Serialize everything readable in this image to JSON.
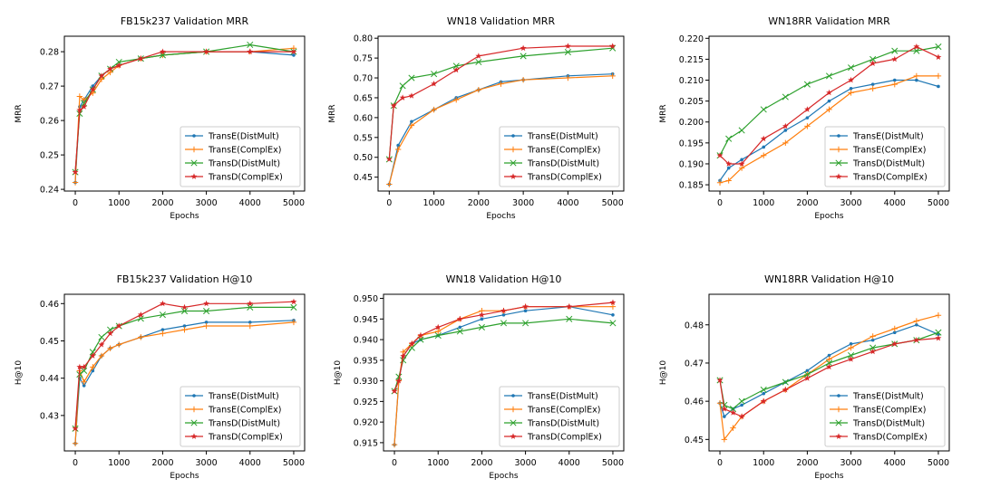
{
  "figure": {
    "colors": {
      "TransE(DistMult)": "#1f77b4",
      "TransE(ComplEx)": "#ff7f0e",
      "TransD(DistMult)": "#2ca02c",
      "TransD(ComplEx)": "#d62728"
    },
    "markers": {
      "TransE(DistMult)": "dot",
      "TransE(ComplEx)": "plus",
      "TransD(DistMult)": "x",
      "TransD(ComplEx)": "star"
    }
  },
  "chart_data": [
    {
      "type": "line",
      "title": "FB15k237 Validation MRR",
      "xlabel": "Epochs",
      "ylabel": "MRR",
      "xlim": [
        -250,
        5250
      ],
      "ylim": [
        0.2395,
        0.2845
      ],
      "xticks": [
        0,
        1000,
        2000,
        3000,
        4000,
        5000
      ],
      "yticks": [
        0.24,
        0.25,
        0.26,
        0.27,
        0.28
      ],
      "ytick_labels": [
        "0.24",
        "0.25",
        "0.26",
        "0.27",
        "0.28"
      ],
      "legend": "lower-right",
      "series": [
        {
          "name": "TransE(DistMult)",
          "x": [
            0,
            100,
            200,
            400,
            600,
            800,
            1000,
            1500,
            2000,
            3000,
            4000,
            5000
          ],
          "y": [
            0.242,
            0.264,
            0.266,
            0.27,
            0.273,
            0.275,
            0.276,
            0.278,
            0.279,
            0.28,
            0.28,
            0.279
          ]
        },
        {
          "name": "TransE(ComplEx)",
          "x": [
            0,
            100,
            200,
            400,
            600,
            800,
            1000,
            1500,
            2000,
            3000,
            4000,
            5000
          ],
          "y": [
            0.242,
            0.267,
            0.266,
            0.268,
            0.272,
            0.274,
            0.276,
            0.278,
            0.279,
            0.28,
            0.28,
            0.281
          ]
        },
        {
          "name": "TransD(DistMult)",
          "x": [
            0,
            100,
            200,
            400,
            600,
            800,
            1000,
            1500,
            2000,
            3000,
            4000,
            5000
          ],
          "y": [
            0.245,
            0.262,
            0.265,
            0.269,
            0.273,
            0.275,
            0.277,
            0.278,
            0.279,
            0.28,
            0.282,
            0.28
          ]
        },
        {
          "name": "TransD(ComplEx)",
          "x": [
            0,
            100,
            200,
            400,
            600,
            800,
            1000,
            1500,
            2000,
            3000,
            4000,
            5000
          ],
          "y": [
            0.245,
            0.263,
            0.264,
            0.269,
            0.273,
            0.275,
            0.276,
            0.278,
            0.28,
            0.28,
            0.28,
            0.28
          ]
        }
      ]
    },
    {
      "type": "line",
      "title": "WN18 Validation MRR",
      "xlabel": "Epochs",
      "ylabel": "MRR",
      "xlim": [
        -250,
        5250
      ],
      "ylim": [
        0.415,
        0.805
      ],
      "xticks": [
        0,
        1000,
        2000,
        3000,
        4000,
        5000
      ],
      "yticks": [
        0.45,
        0.5,
        0.55,
        0.6,
        0.65,
        0.7,
        0.75,
        0.8
      ],
      "ytick_labels": [
        "0.45",
        "0.50",
        "0.55",
        "0.60",
        "0.65",
        "0.70",
        "0.75",
        "0.80"
      ],
      "legend": "lower-right",
      "series": [
        {
          "name": "TransE(DistMult)",
          "x": [
            0,
            200,
            500,
            1000,
            1500,
            2000,
            2500,
            3000,
            4000,
            5000
          ],
          "y": [
            0.432,
            0.53,
            0.59,
            0.62,
            0.65,
            0.67,
            0.69,
            0.695,
            0.705,
            0.71
          ]
        },
        {
          "name": "TransE(ComplEx)",
          "x": [
            0,
            200,
            500,
            1000,
            1500,
            2000,
            2500,
            3000,
            4000,
            5000
          ],
          "y": [
            0.432,
            0.52,
            0.58,
            0.62,
            0.645,
            0.67,
            0.685,
            0.695,
            0.7,
            0.705
          ]
        },
        {
          "name": "TransD(DistMult)",
          "x": [
            0,
            100,
            300,
            500,
            1000,
            1500,
            2000,
            3000,
            4000,
            5000
          ],
          "y": [
            0.495,
            0.63,
            0.68,
            0.7,
            0.71,
            0.73,
            0.74,
            0.755,
            0.765,
            0.775
          ]
        },
        {
          "name": "TransD(ComplEx)",
          "x": [
            0,
            100,
            300,
            500,
            1000,
            1500,
            2000,
            3000,
            4000,
            5000
          ],
          "y": [
            0.495,
            0.63,
            0.65,
            0.655,
            0.685,
            0.72,
            0.755,
            0.775,
            0.78,
            0.78
          ]
        }
      ]
    },
    {
      "type": "line",
      "title": "WN18RR Validation MRR",
      "xlabel": "Epochs",
      "ylabel": "MRR",
      "xlim": [
        -250,
        5250
      ],
      "ylim": [
        0.1835,
        0.2205
      ],
      "xticks": [
        0,
        1000,
        2000,
        3000,
        4000,
        5000
      ],
      "yticks": [
        0.185,
        0.19,
        0.195,
        0.2,
        0.205,
        0.21,
        0.215,
        0.22
      ],
      "ytick_labels": [
        "0.185",
        "0.190",
        "0.195",
        "0.200",
        "0.205",
        "0.210",
        "0.215",
        "0.220"
      ],
      "legend": "lower-right",
      "series": [
        {
          "name": "TransE(DistMult)",
          "x": [
            0,
            200,
            500,
            1000,
            1500,
            2000,
            2500,
            3000,
            3500,
            4000,
            4500,
            5000
          ],
          "y": [
            0.186,
            0.189,
            0.191,
            0.194,
            0.198,
            0.201,
            0.205,
            0.208,
            0.209,
            0.21,
            0.21,
            0.2085
          ]
        },
        {
          "name": "TransE(ComplEx)",
          "x": [
            0,
            200,
            500,
            1000,
            1500,
            2000,
            2500,
            3000,
            3500,
            4000,
            4500,
            5000
          ],
          "y": [
            0.1855,
            0.186,
            0.189,
            0.192,
            0.195,
            0.199,
            0.203,
            0.207,
            0.208,
            0.209,
            0.211,
            0.211
          ]
        },
        {
          "name": "TransD(DistMult)",
          "x": [
            0,
            200,
            500,
            1000,
            1500,
            2000,
            2500,
            3000,
            3500,
            4000,
            4500,
            5000
          ],
          "y": [
            0.192,
            0.196,
            0.198,
            0.203,
            0.206,
            0.209,
            0.211,
            0.213,
            0.215,
            0.217,
            0.217,
            0.218
          ]
        },
        {
          "name": "TransD(ComplEx)",
          "x": [
            0,
            200,
            500,
            1000,
            1500,
            2000,
            2500,
            3000,
            3500,
            4000,
            4500,
            5000
          ],
          "y": [
            0.192,
            0.19,
            0.19,
            0.196,
            0.199,
            0.203,
            0.207,
            0.21,
            0.214,
            0.215,
            0.218,
            0.2155
          ]
        }
      ]
    },
    {
      "type": "line",
      "title": "FB15k237 Validation H@10",
      "xlabel": "Epochs",
      "ylabel": "H@10",
      "xlim": [
        -250,
        5250
      ],
      "ylim": [
        0.4205,
        0.4625
      ],
      "xticks": [
        0,
        1000,
        2000,
        3000,
        4000,
        5000
      ],
      "yticks": [
        0.43,
        0.44,
        0.45,
        0.46
      ],
      "ytick_labels": [
        "0.43",
        "0.44",
        "0.45",
        "0.46"
      ],
      "legend": "lower-right",
      "series": [
        {
          "name": "TransE(DistMult)",
          "x": [
            0,
            100,
            200,
            400,
            600,
            800,
            1000,
            1500,
            2000,
            2500,
            3000,
            4000,
            5000
          ],
          "y": [
            0.4225,
            0.44,
            0.438,
            0.442,
            0.446,
            0.448,
            0.449,
            0.451,
            0.453,
            0.454,
            0.455,
            0.455,
            0.4555
          ]
        },
        {
          "name": "TransE(ComplEx)",
          "x": [
            0,
            100,
            200,
            400,
            600,
            800,
            1000,
            1500,
            2000,
            2500,
            3000,
            4000,
            5000
          ],
          "y": [
            0.4225,
            0.442,
            0.439,
            0.443,
            0.446,
            0.448,
            0.449,
            0.451,
            0.452,
            0.453,
            0.454,
            0.454,
            0.455
          ]
        },
        {
          "name": "TransD(DistMult)",
          "x": [
            0,
            100,
            200,
            400,
            600,
            800,
            1000,
            1500,
            2000,
            2500,
            3000,
            4000,
            5000
          ],
          "y": [
            0.4265,
            0.441,
            0.442,
            0.447,
            0.451,
            0.453,
            0.454,
            0.456,
            0.457,
            0.458,
            0.458,
            0.459,
            0.459
          ]
        },
        {
          "name": "TransD(ComplEx)",
          "x": [
            0,
            100,
            200,
            400,
            600,
            800,
            1000,
            1500,
            2000,
            2500,
            3000,
            4000,
            5000
          ],
          "y": [
            0.4265,
            0.443,
            0.443,
            0.446,
            0.449,
            0.452,
            0.454,
            0.457,
            0.46,
            0.459,
            0.46,
            0.46,
            0.4605
          ]
        }
      ]
    },
    {
      "type": "line",
      "title": "WN18 Validation H@10",
      "xlabel": "Epochs",
      "ylabel": "H@10",
      "xlim": [
        -250,
        5250
      ],
      "ylim": [
        0.913,
        0.951
      ],
      "xticks": [
        0,
        1000,
        2000,
        3000,
        4000,
        5000
      ],
      "yticks": [
        0.915,
        0.92,
        0.925,
        0.93,
        0.935,
        0.94,
        0.945,
        0.95
      ],
      "ytick_labels": [
        "0.915",
        "0.920",
        "0.925",
        "0.930",
        "0.935",
        "0.940",
        "0.945",
        "0.950"
      ],
      "legend": "lower-right",
      "series": [
        {
          "name": "TransE(DistMult)",
          "x": [
            0,
            100,
            200,
            400,
            600,
            1000,
            1500,
            2000,
            2500,
            3000,
            4000,
            5000
          ],
          "y": [
            0.9145,
            0.93,
            0.936,
            0.939,
            0.94,
            0.941,
            0.943,
            0.945,
            0.946,
            0.947,
            0.948,
            0.946
          ]
        },
        {
          "name": "TransE(ComplEx)",
          "x": [
            0,
            100,
            200,
            400,
            600,
            1000,
            1500,
            2000,
            2500,
            3000,
            4000,
            5000
          ],
          "y": [
            0.9145,
            0.93,
            0.937,
            0.939,
            0.941,
            0.942,
            0.945,
            0.947,
            0.947,
            0.948,
            0.948,
            0.948
          ]
        },
        {
          "name": "TransD(DistMult)",
          "x": [
            0,
            100,
            200,
            400,
            600,
            1000,
            1500,
            2000,
            2500,
            3000,
            4000,
            5000
          ],
          "y": [
            0.9275,
            0.931,
            0.935,
            0.938,
            0.94,
            0.941,
            0.942,
            0.943,
            0.944,
            0.944,
            0.945,
            0.944
          ]
        },
        {
          "name": "TransD(ComplEx)",
          "x": [
            0,
            100,
            200,
            400,
            600,
            1000,
            1500,
            2000,
            2500,
            3000,
            4000,
            5000
          ],
          "y": [
            0.9275,
            0.93,
            0.936,
            0.939,
            0.941,
            0.943,
            0.945,
            0.946,
            0.947,
            0.948,
            0.948,
            0.949
          ]
        }
      ]
    },
    {
      "type": "line",
      "title": "WN18RR Validation H@10",
      "xlabel": "Epochs",
      "ylabel": "H@10",
      "xlim": [
        -250,
        5250
      ],
      "ylim": [
        0.447,
        0.488
      ],
      "xticks": [
        0,
        1000,
        2000,
        3000,
        4000,
        5000
      ],
      "yticks": [
        0.45,
        0.46,
        0.47,
        0.48
      ],
      "ytick_labels": [
        "0.45",
        "0.46",
        "0.47",
        "0.48"
      ],
      "legend": "lower-right",
      "series": [
        {
          "name": "TransE(DistMult)",
          "x": [
            0,
            100,
            300,
            500,
            1000,
            1500,
            2000,
            2500,
            3000,
            3500,
            4000,
            4500,
            5000
          ],
          "y": [
            0.4595,
            0.456,
            0.458,
            0.459,
            0.462,
            0.465,
            0.468,
            0.472,
            0.475,
            0.476,
            0.478,
            0.48,
            0.4775
          ]
        },
        {
          "name": "TransE(ComplEx)",
          "x": [
            0,
            100,
            300,
            500,
            1000,
            1500,
            2000,
            2500,
            3000,
            3500,
            4000,
            4500,
            5000
          ],
          "y": [
            0.4595,
            0.45,
            0.453,
            0.456,
            0.46,
            0.463,
            0.467,
            0.471,
            0.474,
            0.477,
            0.479,
            0.481,
            0.4825
          ]
        },
        {
          "name": "TransD(DistMult)",
          "x": [
            0,
            100,
            300,
            500,
            1000,
            1500,
            2000,
            2500,
            3000,
            3500,
            4000,
            4500,
            5000
          ],
          "y": [
            0.4655,
            0.459,
            0.458,
            0.46,
            0.463,
            0.465,
            0.467,
            0.47,
            0.472,
            0.474,
            0.475,
            0.476,
            0.478
          ]
        },
        {
          "name": "TransD(ComplEx)",
          "x": [
            0,
            100,
            300,
            500,
            1000,
            1500,
            2000,
            2500,
            3000,
            3500,
            4000,
            4500,
            5000
          ],
          "y": [
            0.4655,
            0.458,
            0.457,
            0.456,
            0.46,
            0.463,
            0.466,
            0.469,
            0.471,
            0.473,
            0.475,
            0.476,
            0.4765
          ]
        }
      ]
    }
  ]
}
